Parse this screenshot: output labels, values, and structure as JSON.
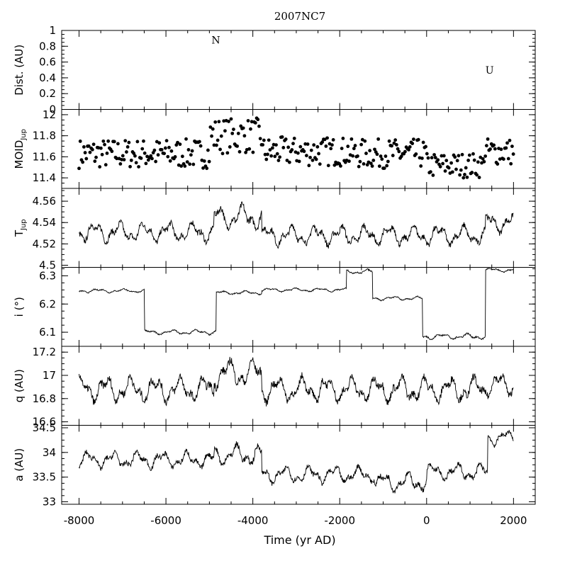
{
  "chart_data": {
    "type": "line",
    "title": "2007NC7",
    "xlabel": "Time (yr AD)",
    "xlim": [
      -8400,
      2500
    ],
    "xticks": [
      -8000,
      -6000,
      -4000,
      -2000,
      0,
      2000
    ],
    "panels": [
      {
        "id": "dist",
        "type": "scatter",
        "ylabel": "Dist. (AU)",
        "ylim": [
          0,
          1
        ],
        "yticks": [
          "0",
          "0.2",
          "0.4",
          "0.6",
          "0.8",
          "1"
        ],
        "annotations": [
          {
            "text": "N",
            "x": -4850,
            "y": 0.88
          },
          {
            "text": "U",
            "x": 1450,
            "y": 0.5
          }
        ]
      },
      {
        "id": "moid",
        "type": "scatter",
        "ylabel_main": "MOID",
        "ylabel_sub": "Jup",
        "ylim": [
          11.3,
          12.05
        ],
        "yticks": [
          "11.4",
          "11.6",
          "11.8",
          "12"
        ],
        "segments": [
          {
            "t0": -8000,
            "t1": -5000,
            "level": 11.63,
            "amp": 0.14
          },
          {
            "t0": -5000,
            "t1": -3800,
            "level": 11.8,
            "amp": 0.17
          },
          {
            "t0": -3800,
            "t1": -1800,
            "level": 11.65,
            "amp": 0.14
          },
          {
            "t0": -1800,
            "t1": 0,
            "level": 11.63,
            "amp": 0.14
          },
          {
            "t0": 0,
            "t1": 1300,
            "level": 11.52,
            "amp": 0.12
          },
          {
            "t0": 1300,
            "t1": 2000,
            "level": 11.65,
            "amp": 0.13
          }
        ]
      },
      {
        "id": "tjup",
        "type": "line",
        "ylabel_main": "T",
        "ylabel_sub": "Jup",
        "ylim": [
          4.498,
          4.572
        ],
        "yticks": [
          "4.5",
          "4.52",
          "4.54",
          "4.56"
        ],
        "segments": [
          {
            "t0": -8000,
            "t1": -4900,
            "level": 4.531,
            "amp": 0.011
          },
          {
            "t0": -4900,
            "t1": -3800,
            "level": 4.545,
            "amp": 0.013
          },
          {
            "t0": -3800,
            "t1": 1350,
            "level": 4.528,
            "amp": 0.011
          },
          {
            "t0": 1350,
            "t1": 2000,
            "level": 4.54,
            "amp": 0.011
          }
        ]
      },
      {
        "id": "incl",
        "type": "line",
        "ylabel": "i (°)",
        "ylim": [
          6.05,
          6.33
        ],
        "yticks": [
          "6.1",
          "6.2",
          "6.3"
        ],
        "segments": [
          {
            "t0": -8000,
            "t1": -6500,
            "level": 6.247,
            "amp": 0.008
          },
          {
            "t0": -6500,
            "t1": -4850,
            "level": 6.1,
            "amp": 0.01
          },
          {
            "t0": -4850,
            "t1": -3800,
            "level": 6.24,
            "amp": 0.008
          },
          {
            "t0": -3800,
            "t1": -1850,
            "level": 6.25,
            "amp": 0.008
          },
          {
            "t0": -1850,
            "t1": -1250,
            "level": 6.315,
            "amp": 0.01
          },
          {
            "t0": -1250,
            "t1": -100,
            "level": 6.22,
            "amp": 0.008
          },
          {
            "t0": -100,
            "t1": 1350,
            "level": 6.085,
            "amp": 0.012
          },
          {
            "t0": 1350,
            "t1": 2000,
            "level": 6.32,
            "amp": 0.008
          }
        ]
      },
      {
        "id": "q",
        "type": "line",
        "ylabel": "q (AU)",
        "ylim": [
          16.57,
          17.25
        ],
        "yticks": [
          "16.6",
          "16.8",
          "17",
          "17.2"
        ],
        "segments": [
          {
            "t0": -8000,
            "t1": -4900,
            "level": 16.88,
            "amp": 0.13
          },
          {
            "t0": -4900,
            "t1": -3800,
            "level": 17.02,
            "amp": 0.14
          },
          {
            "t0": -3800,
            "t1": 1350,
            "level": 16.88,
            "amp": 0.13
          },
          {
            "t0": 1350,
            "t1": 2000,
            "level": 16.92,
            "amp": 0.12
          }
        ]
      },
      {
        "id": "a",
        "type": "line",
        "ylabel": "a (AU)",
        "ylim": [
          32.95,
          34.55
        ],
        "yticks": [
          "33",
          "33.5",
          "34",
          "34.5"
        ],
        "segments": [
          {
            "t0": -8000,
            "t1": -4900,
            "level": 33.85,
            "amp": 0.2
          },
          {
            "t0": -4900,
            "t1": -3800,
            "level": 33.95,
            "amp": 0.25
          },
          {
            "t0": -3800,
            "t1": -1200,
            "level": 33.55,
            "amp": 0.2
          },
          {
            "t0": -1200,
            "t1": 0,
            "level": 33.4,
            "amp": 0.22
          },
          {
            "t0": 0,
            "t1": 1400,
            "level": 33.6,
            "amp": 0.2
          },
          {
            "t0": 1400,
            "t1": 2000,
            "level": 34.3,
            "amp": 0.18
          }
        ]
      }
    ]
  }
}
